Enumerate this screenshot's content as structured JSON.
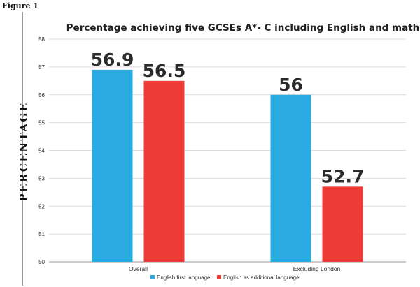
{
  "figure_label": "Figure 1",
  "chart_data": {
    "type": "bar",
    "title": "Percentage achieving five GCSEs A*- C including English and maths",
    "xlabel": "",
    "ylabel": "PERCENTAGE",
    "categories": [
      "Overall",
      "Excluding London"
    ],
    "series": [
      {
        "name": "English first language",
        "values": [
          56.9,
          56
        ],
        "labels": [
          "56.9",
          "56"
        ],
        "color": "#29abe2"
      },
      {
        "name": "English as additional language",
        "values": [
          56.5,
          52.7
        ],
        "labels": [
          "56.5",
          "52.7"
        ],
        "color": "#ef3b36"
      }
    ],
    "ylim": [
      50,
      58
    ],
    "yticks": [
      50,
      51,
      52,
      53,
      54,
      55,
      56,
      57,
      58
    ],
    "grid": true,
    "legend_position": "bottom-center"
  }
}
